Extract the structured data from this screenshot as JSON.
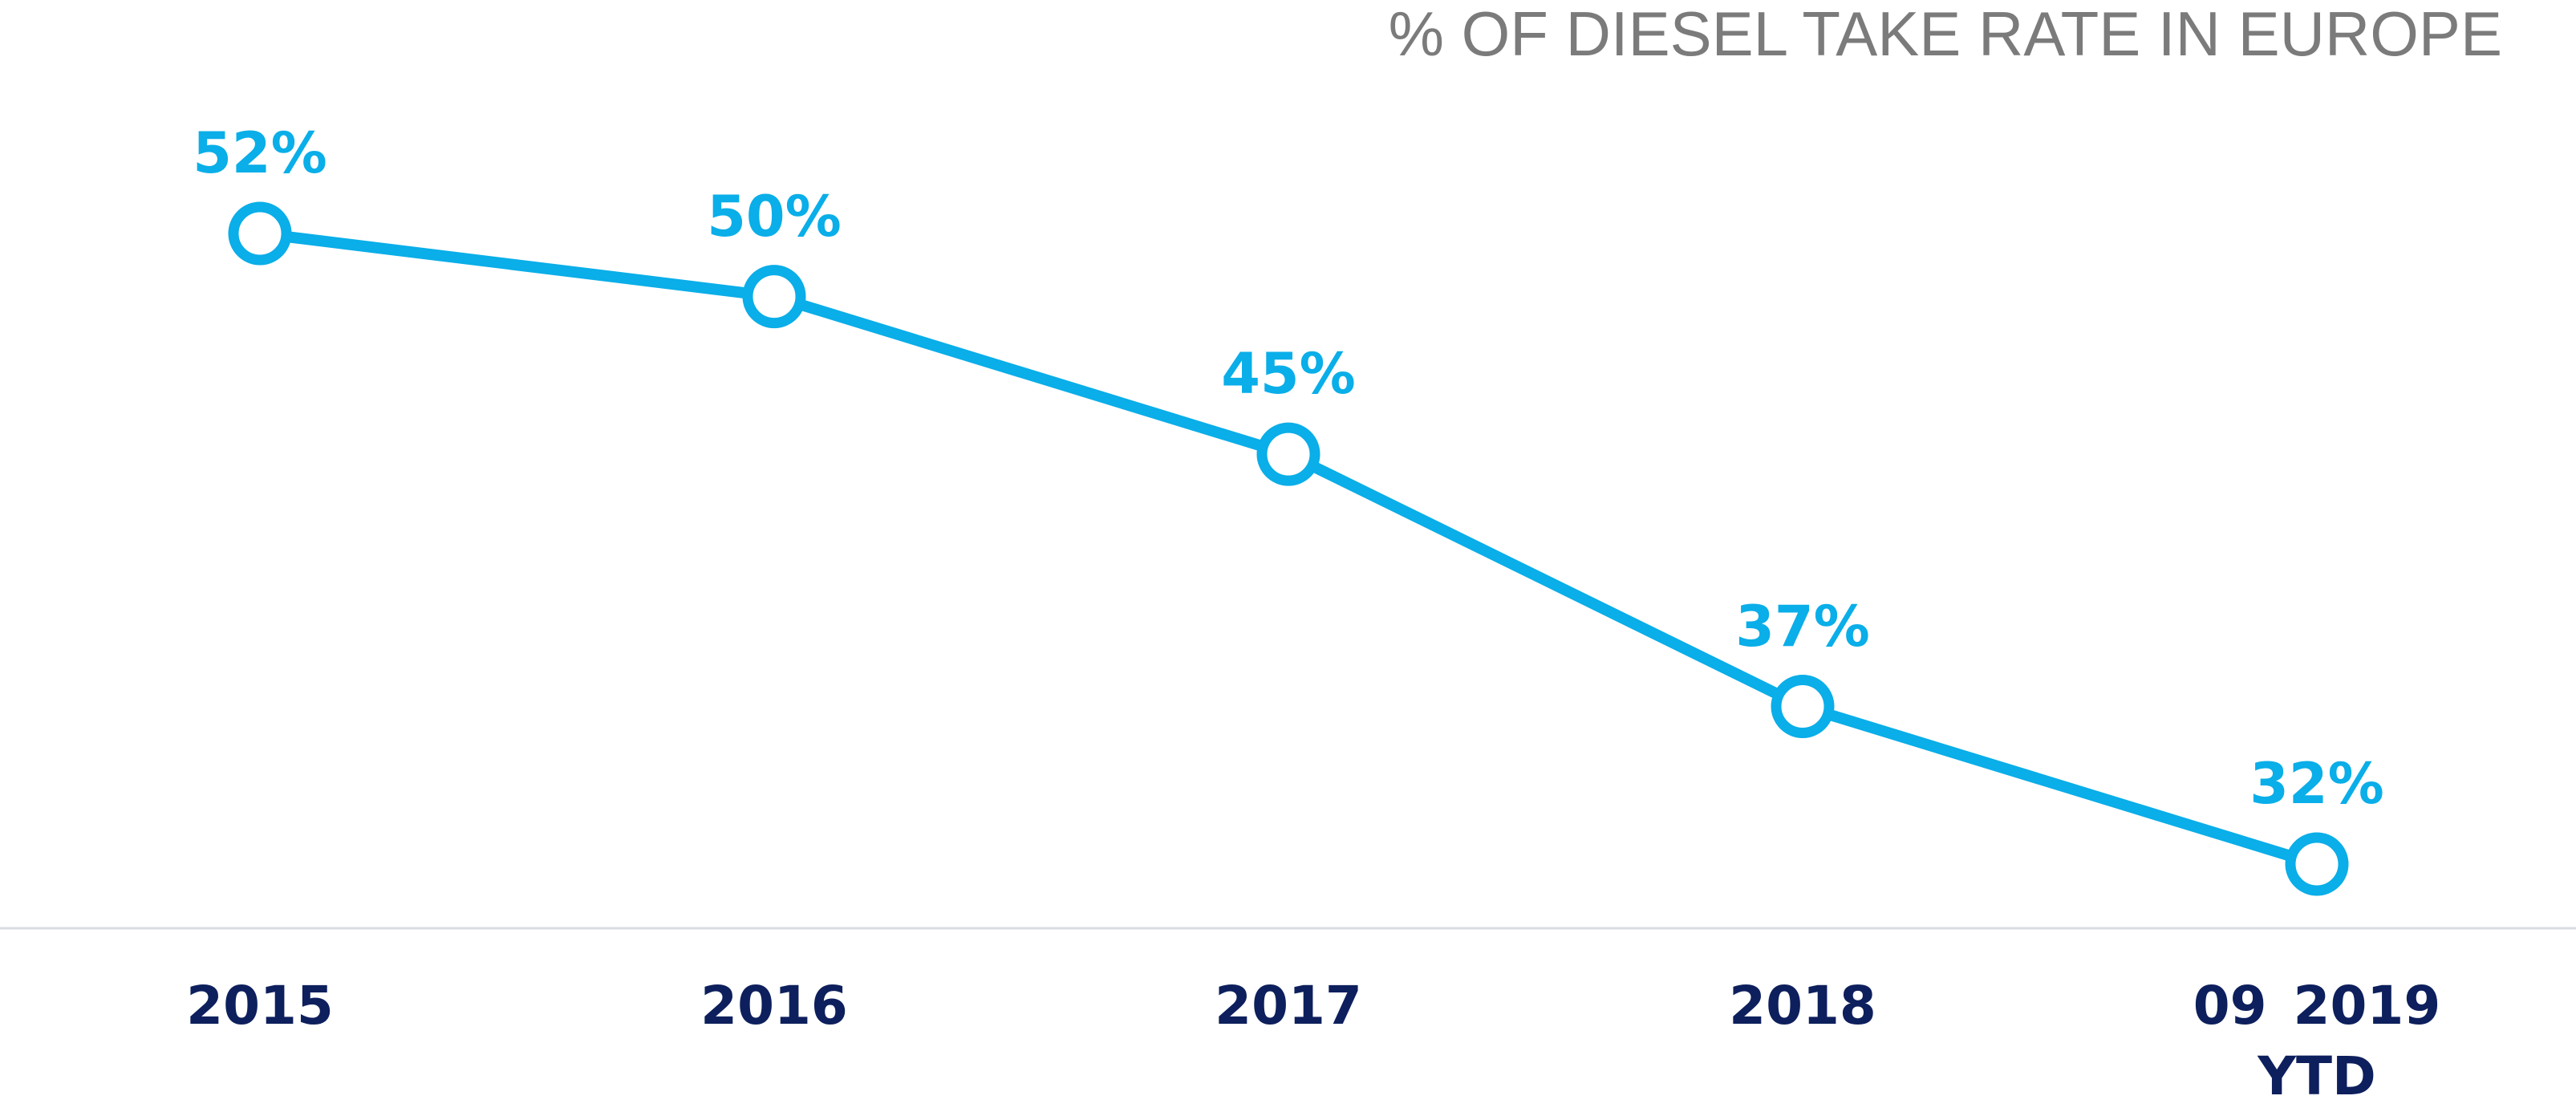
{
  "chart_data": {
    "type": "line",
    "title": "% OF DIESEL TAKE RATE IN EUROPE",
    "categories": [
      "2015",
      "2016",
      "2017",
      "2018",
      "09 2019 YTD"
    ],
    "values": [
      52,
      50,
      45,
      37,
      32
    ],
    "value_labels": [
      "52%",
      "50%",
      "45%",
      "37%",
      "32%"
    ],
    "color": "#0aaee8"
  }
}
